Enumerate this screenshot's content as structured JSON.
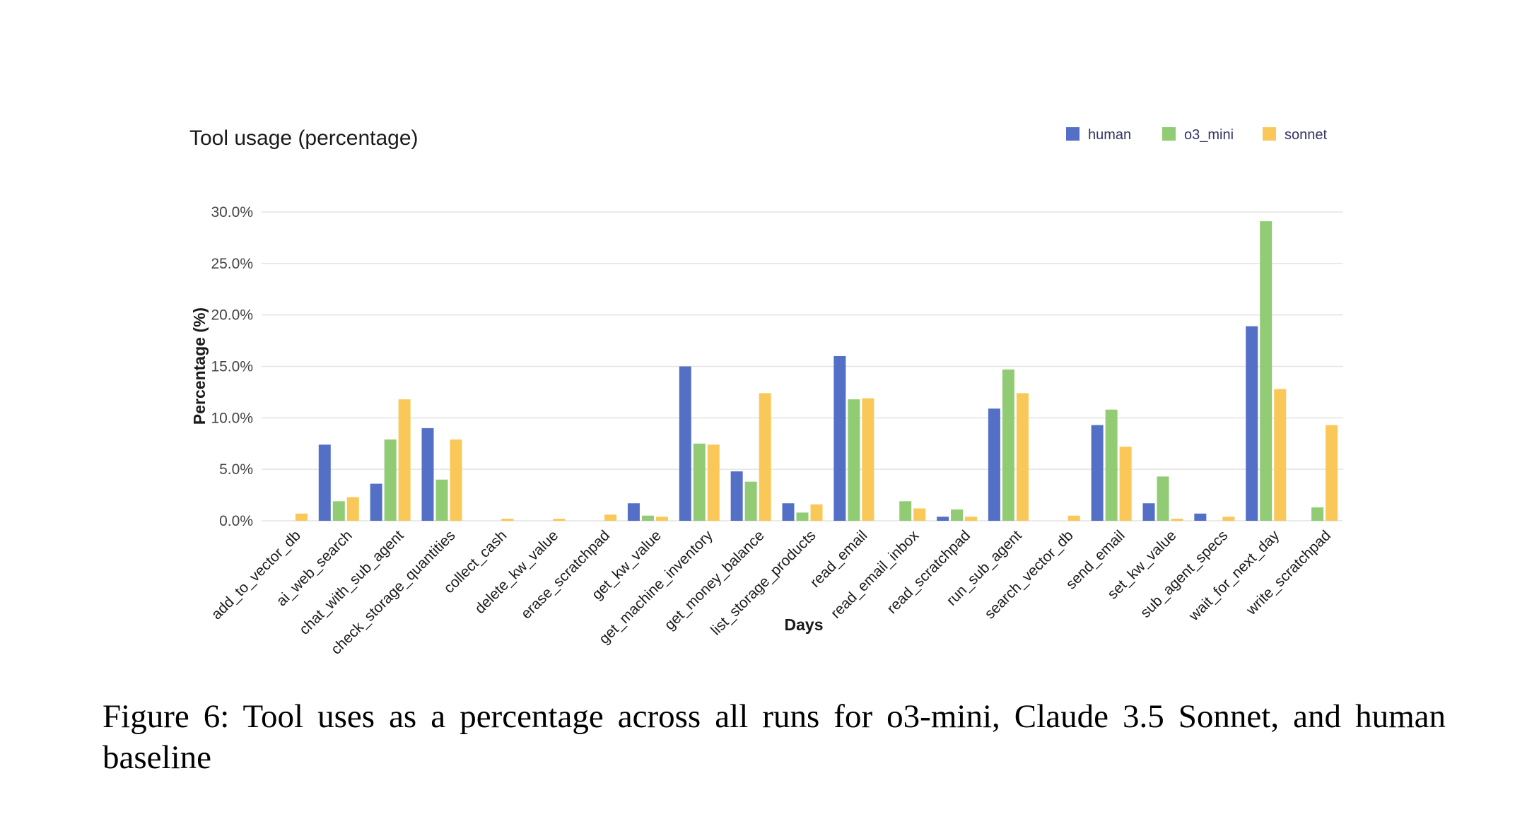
{
  "chart_data": {
    "type": "bar",
    "title": "Tool usage (percentage)",
    "xlabel": "Days",
    "ylabel": "Percentage (%)",
    "ylim": [
      0,
      30
    ],
    "yticks": [
      "0.0%",
      "5.0%",
      "10.0%",
      "15.0%",
      "20.0%",
      "25.0%",
      "30.0%"
    ],
    "grid": true,
    "legend_position": "top-right",
    "categories": [
      "add_to_vector_db",
      "ai_web_search",
      "chat_with_sub_agent",
      "check_storage_quantities",
      "collect_cash",
      "delete_kw_value",
      "erase_scratchpad",
      "get_kw_value",
      "get_machine_inventory",
      "get_money_balance",
      "list_storage_products",
      "read_email",
      "read_email_inbox",
      "read_scratchpad",
      "run_sub_agent",
      "search_vector_db",
      "send_email",
      "set_kw_value",
      "sub_agent_specs",
      "wait_for_next_day",
      "write_scratchpad"
    ],
    "series": [
      {
        "name": "human",
        "color": "#5470c6",
        "values": [
          0,
          7.4,
          3.6,
          9.0,
          0,
          0,
          0,
          1.7,
          15.0,
          4.8,
          1.7,
          16.0,
          0,
          0.4,
          10.9,
          0,
          9.3,
          1.7,
          0.7,
          18.9,
          0
        ]
      },
      {
        "name": "o3_mini",
        "color": "#91cc75",
        "values": [
          0,
          1.9,
          7.9,
          4.0,
          0,
          0,
          0,
          0.5,
          7.5,
          3.8,
          0.8,
          11.8,
          1.9,
          1.1,
          14.7,
          0,
          10.8,
          4.3,
          0,
          29.1,
          1.3
        ]
      },
      {
        "name": "sonnet",
        "color": "#fac858",
        "values": [
          0.7,
          2.3,
          11.8,
          7.9,
          0.2,
          0.2,
          0.6,
          0.4,
          7.4,
          12.4,
          1.6,
          11.9,
          1.2,
          0.4,
          12.4,
          0.5,
          7.2,
          0.2,
          0.4,
          12.8,
          9.3
        ]
      }
    ]
  },
  "caption": {
    "text": "Figure 6:  Tool uses as a percentage across all runs for o3-mini, Claude 3.5 Sonnet, and human baseline"
  }
}
